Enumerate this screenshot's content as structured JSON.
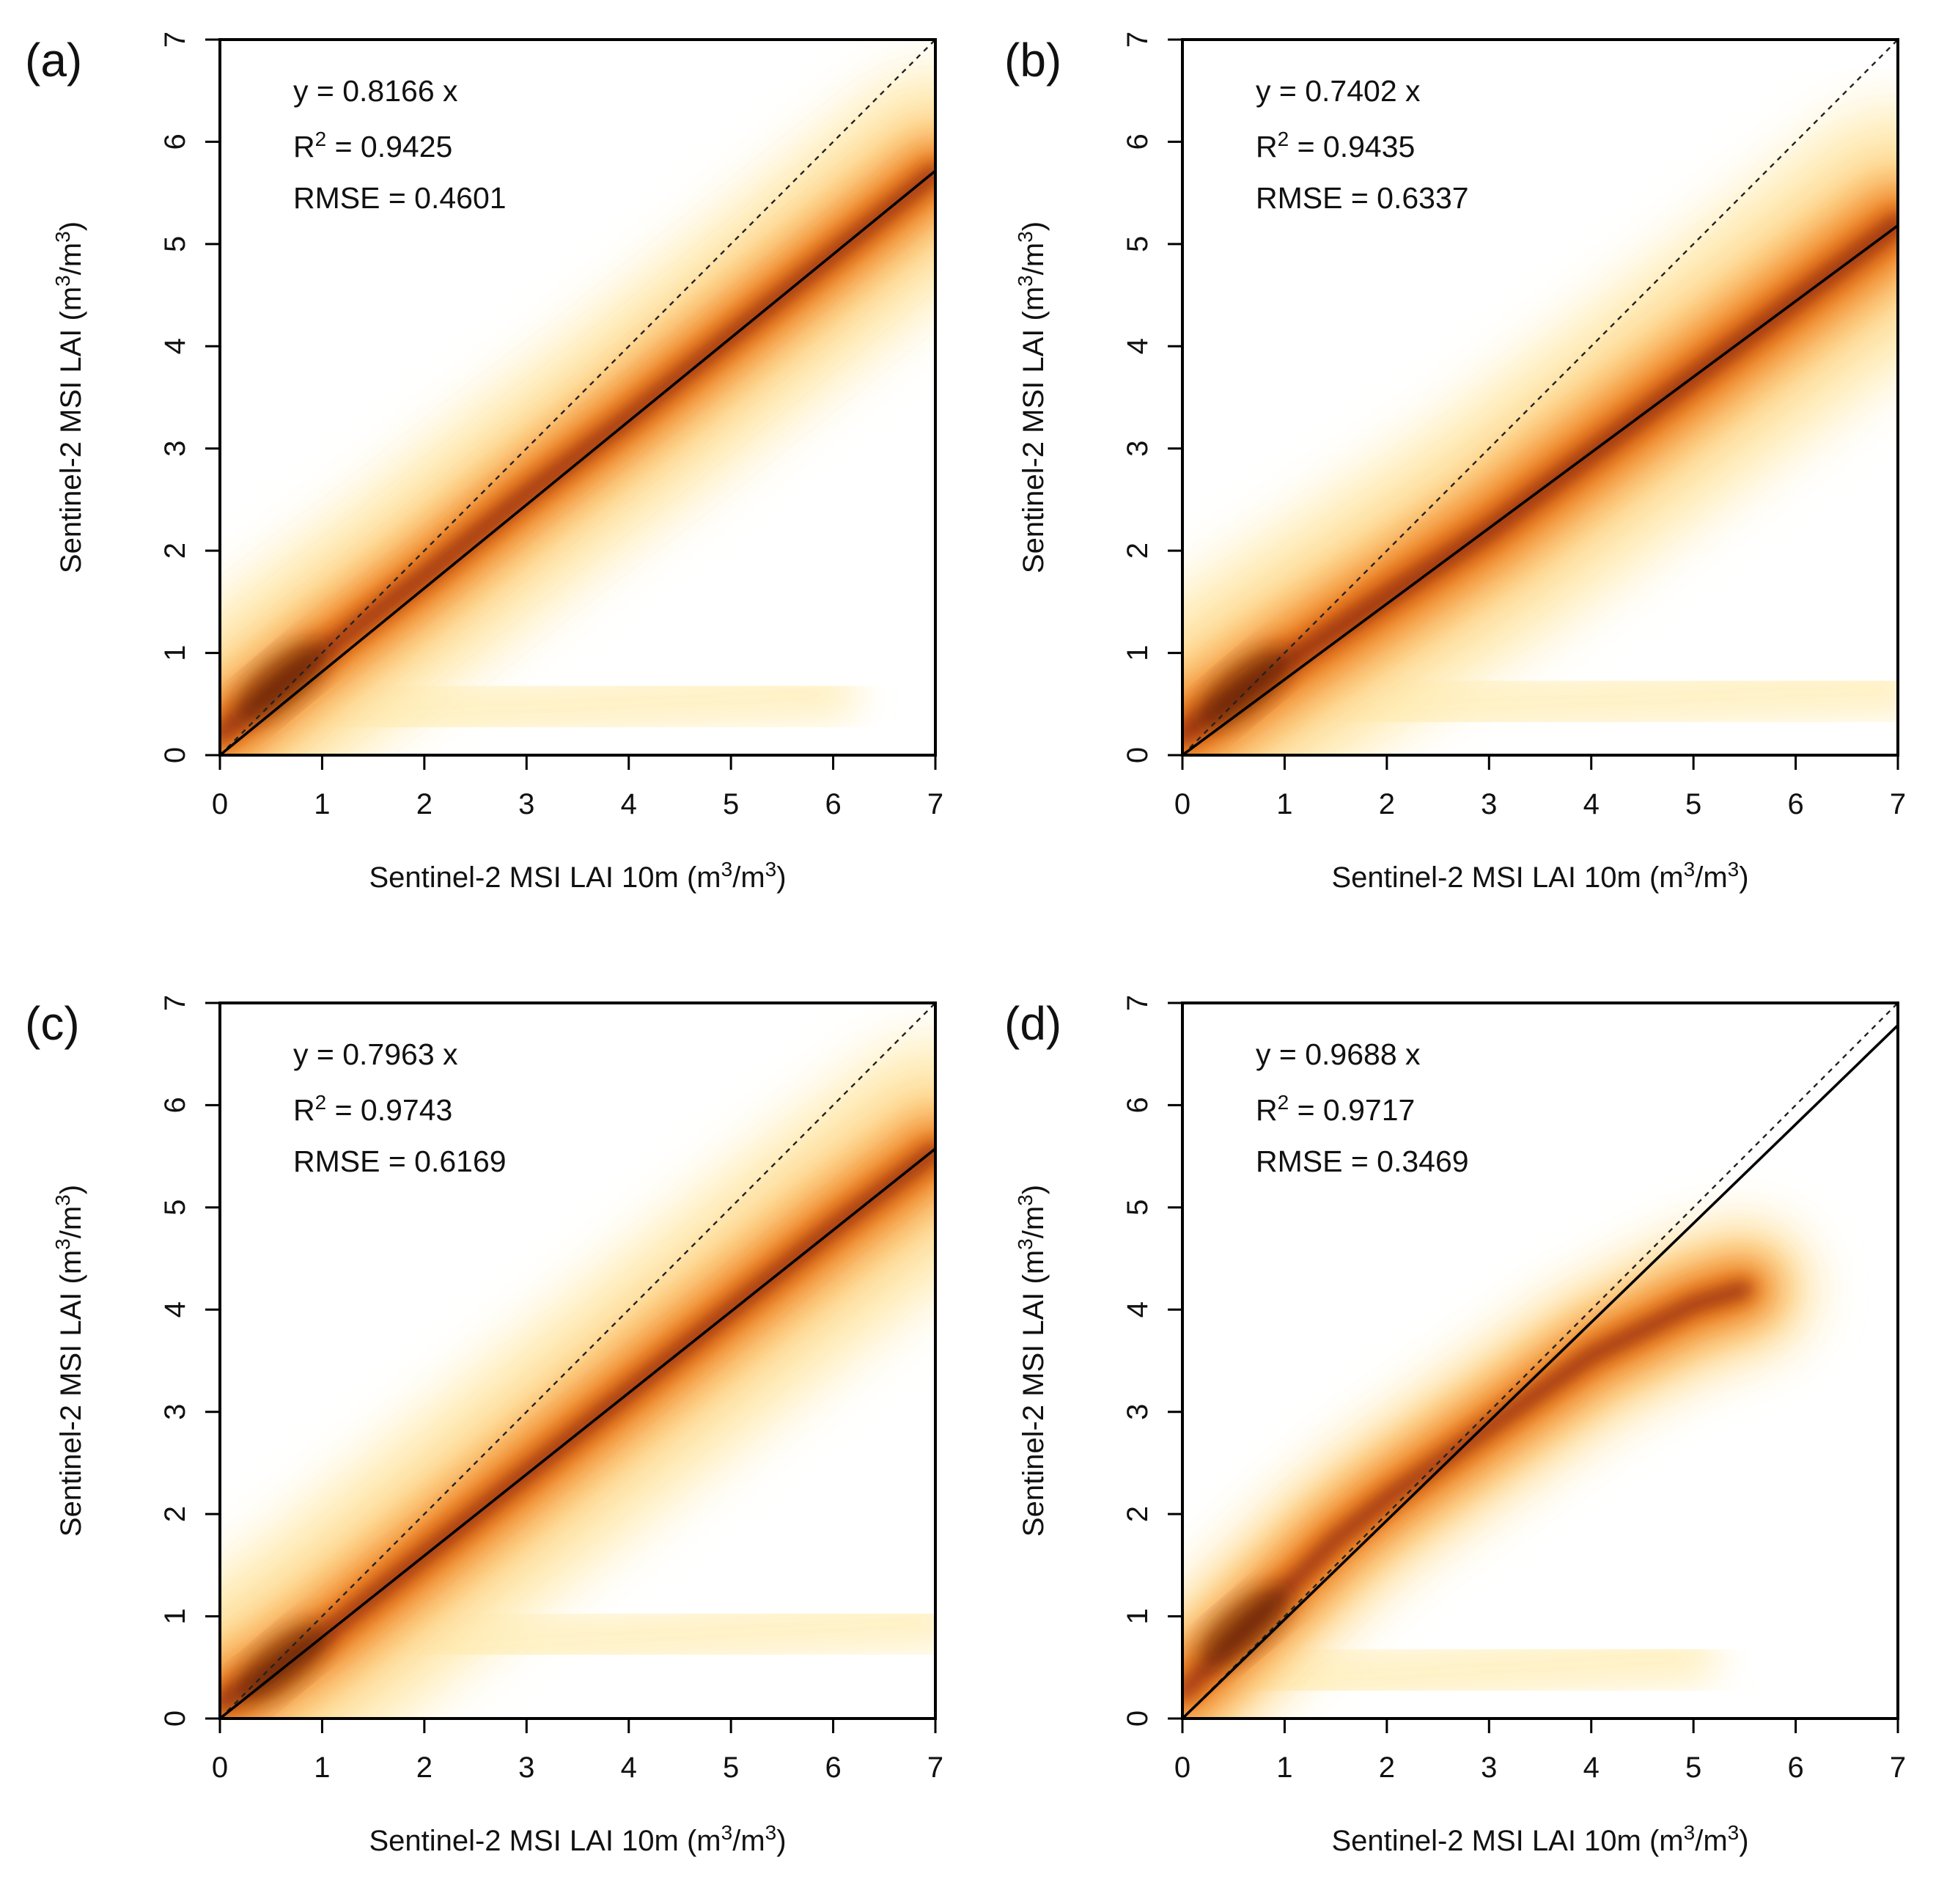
{
  "figure": {
    "colors": {
      "density_ramp": [
        "#fffbe6",
        "#ffeeb8",
        "#fdd28a",
        "#f9a94a",
        "#ee7d22",
        "#cf5410",
        "#8e2d08",
        "#4a1503"
      ],
      "background": "#ffffff",
      "fit_line": "#000000",
      "one_to_one_line": "#222222"
    }
  },
  "chart_data": [
    {
      "panel": "(a)",
      "type": "scatter",
      "subtype": "density",
      "xlabel": "Sentinel-2 MSI LAI 10m",
      "ylabel": "Sentinel-2 MSI LAI",
      "unit_base": "m",
      "unit_exp": "3",
      "xlim": [
        0,
        7
      ],
      "ylim": [
        0,
        7
      ],
      "xticks": [
        "0",
        "1",
        "2",
        "3",
        "4",
        "5",
        "6",
        "7"
      ],
      "yticks": [
        "0",
        "1",
        "2",
        "3",
        "4",
        "5",
        "6",
        "7"
      ],
      "slope": 0.8166,
      "equation": "y = 0.8166 x",
      "r2_label": "R",
      "r2_exp": "2",
      "r2_value": "= 0.9425",
      "rmse": "RMSE = 0.4601",
      "reference_line": "1:1 (dotted)",
      "fit_line": "solid",
      "density_ridge": [
        [
          0,
          0.2
        ],
        [
          0.5,
          0.6
        ],
        [
          1,
          1.0
        ],
        [
          2,
          1.75
        ],
        [
          3,
          2.55
        ],
        [
          4,
          3.3
        ],
        [
          5,
          4.1
        ],
        [
          6,
          4.9
        ],
        [
          7,
          5.7
        ]
      ],
      "density_spread": [
        0.5,
        0.7,
        1.2,
        2.0
      ],
      "secondary_band": {
        "x_range": [
          0.3,
          6.0
        ],
        "y": 0.35
      }
    },
    {
      "panel": "(b)",
      "type": "scatter",
      "subtype": "density",
      "xlabel": "Sentinel-2 MSI LAI 10m",
      "ylabel": "Sentinel-2 MSI LAI",
      "unit_base": "m",
      "unit_exp": "3",
      "xlim": [
        0,
        7
      ],
      "ylim": [
        0,
        7
      ],
      "xticks": [
        "0",
        "1",
        "2",
        "3",
        "4",
        "5",
        "6",
        "7"
      ],
      "yticks": [
        "0",
        "1",
        "2",
        "3",
        "4",
        "5",
        "6",
        "7"
      ],
      "slope": 0.7402,
      "equation": "y = 0.7402 x",
      "r2_label": "R",
      "r2_exp": "2",
      "r2_value": "= 0.9435",
      "rmse": "RMSE = 0.6337",
      "reference_line": "1:1 (dotted)",
      "fit_line": "solid",
      "density_ridge": [
        [
          0,
          0.2
        ],
        [
          0.5,
          0.55
        ],
        [
          1,
          0.9
        ],
        [
          2,
          1.55
        ],
        [
          3,
          2.2
        ],
        [
          4,
          2.95
        ],
        [
          5,
          3.7
        ],
        [
          6,
          4.45
        ],
        [
          7,
          5.2
        ]
      ],
      "density_spread": [
        0.6,
        0.85,
        1.4,
        2.3
      ],
      "secondary_band": {
        "x_range": [
          0.5,
          7.0
        ],
        "y": 0.4
      }
    },
    {
      "panel": "(c)",
      "type": "scatter",
      "subtype": "density",
      "xlabel": "Sentinel-2 MSI LAI 10m",
      "ylabel": "Sentinel-2 MSI LAI",
      "unit_base": "m",
      "unit_exp": "3",
      "xlim": [
        0,
        7
      ],
      "ylim": [
        0,
        7
      ],
      "xticks": [
        "0",
        "1",
        "2",
        "3",
        "4",
        "5",
        "6",
        "7"
      ],
      "yticks": [
        "0",
        "1",
        "2",
        "3",
        "4",
        "5",
        "6",
        "7"
      ],
      "slope": 0.7963,
      "equation": "y = 0.7963 x",
      "r2_label": "R",
      "r2_exp": "2",
      "r2_value": "= 0.9743",
      "rmse": "RMSE = 0.6169",
      "reference_line": "1:1 (dotted)",
      "fit_line": "solid",
      "density_ridge": [
        [
          0,
          0.15
        ],
        [
          0.5,
          0.45
        ],
        [
          1,
          0.8
        ],
        [
          2,
          1.6
        ],
        [
          3,
          2.4
        ],
        [
          4,
          3.2
        ],
        [
          5,
          4.0
        ],
        [
          6,
          4.8
        ],
        [
          7,
          5.55
        ]
      ],
      "density_spread": [
        0.5,
        0.75,
        1.3,
        2.2
      ],
      "secondary_band": {
        "x_range": [
          2.0,
          7.0
        ],
        "y": 0.7
      }
    },
    {
      "panel": "(d)",
      "type": "scatter",
      "subtype": "density",
      "xlabel": "Sentinel-2 MSI LAI 10m",
      "ylabel": "Sentinel-2 MSI LAI",
      "unit_base": "m",
      "unit_exp": "3",
      "xlim": [
        0,
        7
      ],
      "ylim": [
        0,
        7
      ],
      "xticks": [
        "0",
        "1",
        "2",
        "3",
        "4",
        "5",
        "6",
        "7"
      ],
      "yticks": [
        "0",
        "1",
        "2",
        "3",
        "4",
        "5",
        "6",
        "7"
      ],
      "slope": 0.9688,
      "equation": "y = 0.9688 x",
      "r2_label": "R",
      "r2_exp": "2",
      "r2_value": "= 0.9717",
      "rmse": "RMSE = 0.3469",
      "reference_line": "1:1 (dotted)",
      "fit_line": "solid",
      "density_ridge": [
        [
          0,
          0.25
        ],
        [
          0.5,
          0.75
        ],
        [
          1,
          1.25
        ],
        [
          1.5,
          1.75
        ],
        [
          2,
          2.15
        ],
        [
          3,
          2.85
        ],
        [
          4,
          3.55
        ],
        [
          5,
          4.05
        ],
        [
          5.5,
          4.2
        ]
      ],
      "density_spread": [
        0.45,
        0.7,
        1.0,
        1.3
      ],
      "secondary_band": {
        "x_range": [
          0.5,
          5.0
        ],
        "y": 0.35
      }
    }
  ]
}
